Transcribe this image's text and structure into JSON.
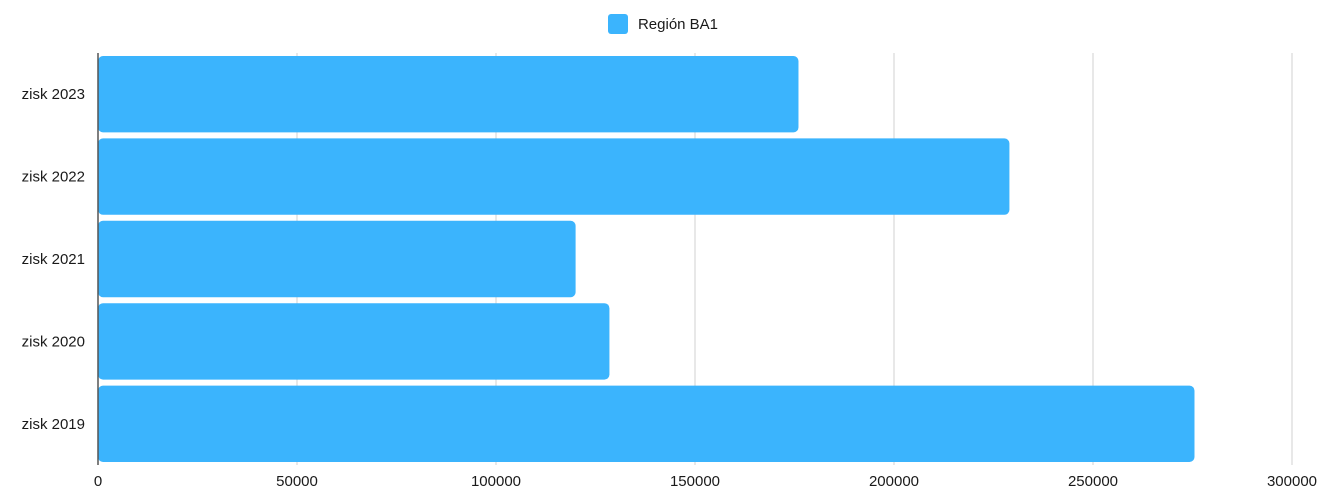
{
  "chart_data": {
    "type": "bar",
    "orientation": "horizontal",
    "categories": [
      "zisk 2023",
      "zisk 2022",
      "zisk 2021",
      "zisk 2020",
      "zisk 2019"
    ],
    "series": [
      {
        "name": "Región BA1",
        "values": [
          176000,
          229000,
          120000,
          128500,
          275500
        ],
        "color": "#3bb4fd"
      }
    ],
    "x_ticks": [
      "0",
      "50000",
      "100000",
      "150000",
      "200000",
      "250000",
      "300000"
    ],
    "xlim": [
      0,
      300000
    ],
    "grid": true,
    "legend_position": "top-center"
  }
}
